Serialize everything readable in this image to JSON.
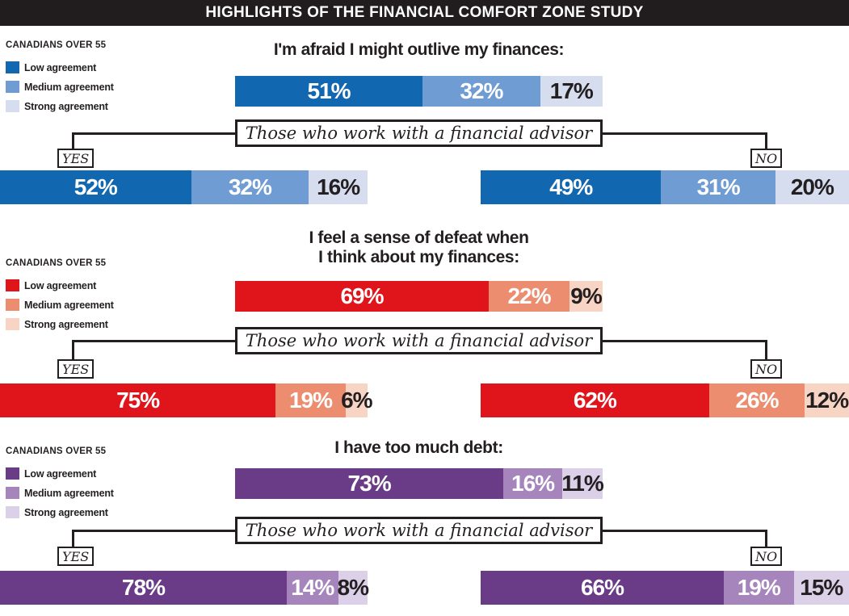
{
  "header": {
    "title": "HIGHLIGHTS OF THE FINANCIAL COMFORT ZONE STUDY",
    "bg_color": "#211d1e"
  },
  "branch": {
    "label": "Those who work with a financial advisor",
    "yes": "YES",
    "no": "NO"
  },
  "chart_data": [
    {
      "type": "bar",
      "subtype": "horizontal-stacked-100",
      "title": "I'm afraid I might outlive my finances:",
      "population_label": "CANADIANS OVER 55",
      "legend": [
        "Low agreement",
        "Medium agreement",
        "Strong agreement"
      ],
      "legend_position": "left",
      "colors": [
        "#1267b1",
        "#6f9cd3",
        "#d5ddef"
      ],
      "branch_label": "Those who work with a financial advisor",
      "groups": [
        {
          "name": "All Canadians over 55",
          "values": [
            51,
            32,
            17
          ],
          "labels": [
            "51%",
            "32%",
            "17%"
          ]
        },
        {
          "name": "Works with advisor: YES",
          "values": [
            52,
            32,
            16
          ],
          "labels": [
            "52%",
            "32%",
            "16%"
          ]
        },
        {
          "name": "Works with advisor: NO",
          "values": [
            49,
            31,
            20
          ],
          "labels": [
            "49%",
            "31%",
            "20%"
          ]
        }
      ]
    },
    {
      "type": "bar",
      "subtype": "horizontal-stacked-100",
      "title": "I feel a sense of defeat when\nI think about my finances:",
      "population_label": "CANADIANS OVER 55",
      "legend": [
        "Low agreement",
        "Medium agreement",
        "Strong agreement"
      ],
      "legend_position": "left",
      "colors": [
        "#e0151b",
        "#eb8d6e",
        "#f7d4c3"
      ],
      "branch_label": "Those who work with a financial advisor",
      "groups": [
        {
          "name": "All Canadians over 55",
          "values": [
            69,
            22,
            9
          ],
          "labels": [
            "69%",
            "22%",
            "9%"
          ]
        },
        {
          "name": "Works with advisor: YES",
          "values": [
            75,
            19,
            6
          ],
          "labels": [
            "75%",
            "19%",
            "6%"
          ]
        },
        {
          "name": "Works with advisor: NO",
          "values": [
            62,
            26,
            12
          ],
          "labels": [
            "62%",
            "26%",
            "12%"
          ]
        }
      ]
    },
    {
      "type": "bar",
      "subtype": "horizontal-stacked-100",
      "title": "I have too much debt:",
      "population_label": "CANADIANS OVER 55",
      "legend": [
        "Low agreement",
        "Medium agreement",
        "Strong agreement"
      ],
      "legend_position": "left",
      "colors": [
        "#6a3b86",
        "#a685bd",
        "#dbd0e7"
      ],
      "branch_label": "Those who work with a financial advisor",
      "groups": [
        {
          "name": "All Canadians over 55",
          "values": [
            73,
            16,
            11
          ],
          "labels": [
            "73%",
            "16%",
            "11%"
          ]
        },
        {
          "name": "Works with advisor: YES",
          "values": [
            78,
            14,
            8
          ],
          "labels": [
            "78%",
            "14%",
            "8%"
          ]
        },
        {
          "name": "Works with advisor: NO",
          "values": [
            66,
            19,
            15
          ],
          "labels": [
            "66%",
            "19%",
            "15%"
          ]
        }
      ]
    }
  ]
}
